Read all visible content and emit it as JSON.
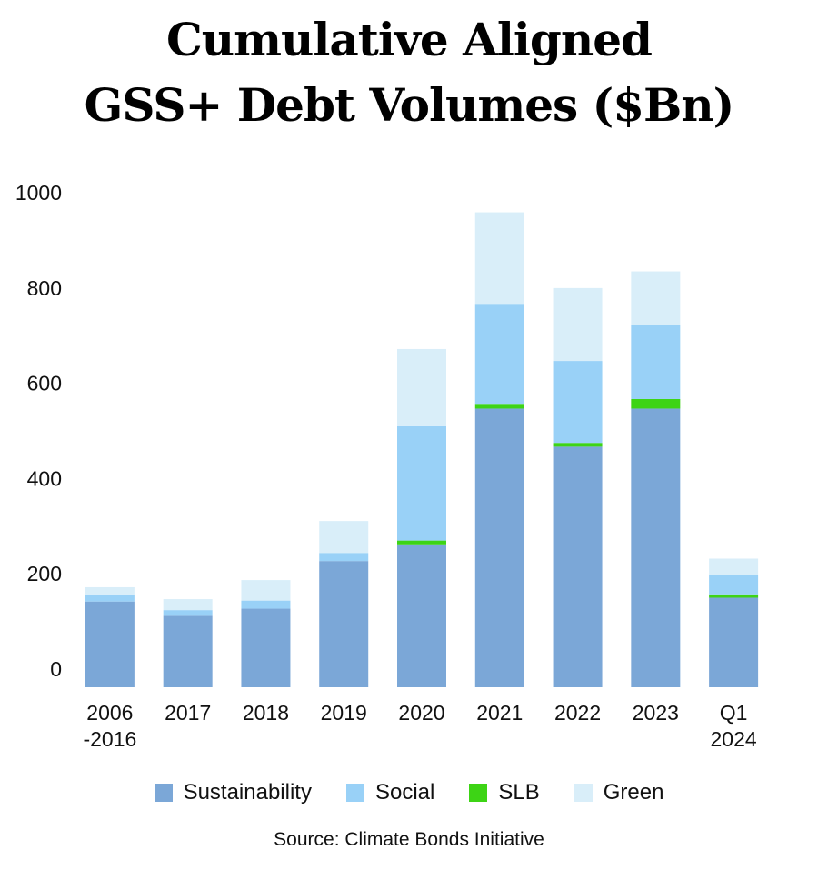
{
  "chart_data": {
    "type": "bar",
    "stacked": true,
    "title_lines": [
      "Cumulative Aligned",
      "GSS+ Debt Volumes ($Bn)"
    ],
    "categories": [
      [
        "2006",
        "-2016"
      ],
      [
        "2017"
      ],
      [
        "2018"
      ],
      [
        "2019"
      ],
      [
        "2020"
      ],
      [
        "2021"
      ],
      [
        "2022"
      ],
      [
        "2023"
      ],
      [
        "Q1",
        "2024"
      ]
    ],
    "series": [
      {
        "name": "Sustainability",
        "color": "#7BA7D7",
        "values": [
          180,
          150,
          165,
          265,
          300,
          585,
          505,
          585,
          188
        ]
      },
      {
        "name": "SLB",
        "color": "#3DD415",
        "values": [
          0,
          0,
          0,
          0,
          8,
          10,
          8,
          20,
          7
        ]
      },
      {
        "name": "Social",
        "color": "#99D1F7",
        "values": [
          15,
          12,
          17,
          17,
          240,
          210,
          172,
          155,
          40
        ]
      },
      {
        "name": "Green",
        "color": "#D9EEF9",
        "values": [
          15,
          23,
          43,
          67,
          162,
          192,
          153,
          113,
          35
        ]
      }
    ],
    "y_ticks": [
      0,
      200,
      400,
      600,
      800,
      1000
    ],
    "ylim": [
      0,
      1000
    ],
    "legend_order": [
      "Sustainability",
      "Social",
      "SLB",
      "Green"
    ],
    "source": "Source: Climate Bonds Initiative"
  }
}
